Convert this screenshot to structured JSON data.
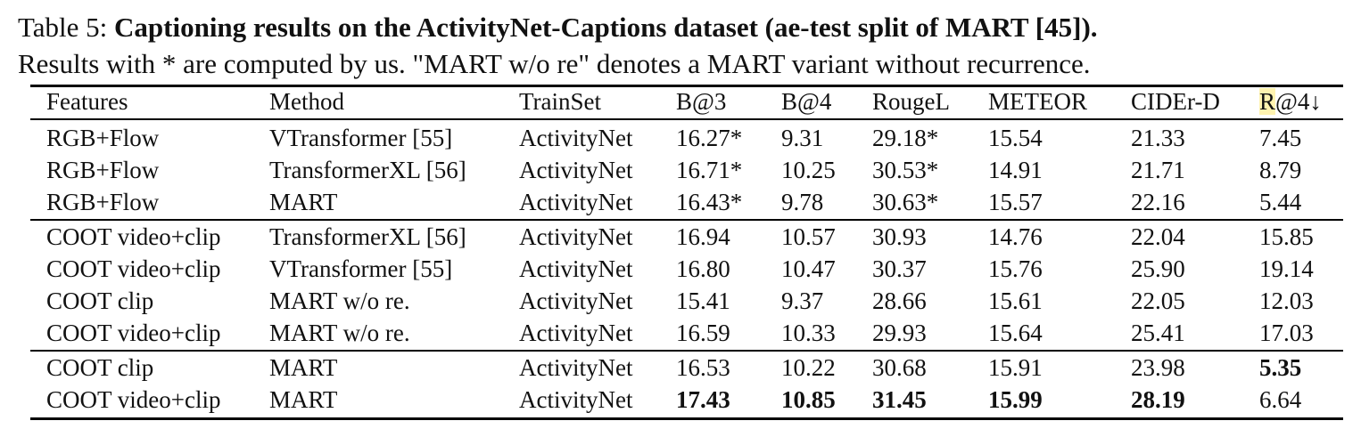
{
  "caption": {
    "label": "Table 5:",
    "title": "Captioning results on the ActivityNet-Captions dataset (ae-test split of MART [45]).",
    "note": "Results with * are computed by us. \"MART w/o re\" denotes a MART variant without recurrence."
  },
  "table": {
    "headers": [
      "Features",
      "Method",
      "TrainSet",
      "B@3",
      "B@4",
      "RougeL",
      "METEOR",
      "CIDEr-D",
      "R@4↓"
    ],
    "header_highlight": "R",
    "header_highlight_rest": "@4↓",
    "highlight_color": "#fff3b0",
    "groups": [
      [
        [
          "RGB+Flow",
          "VTransformer [55]",
          "ActivityNet",
          "16.27*",
          "9.31",
          "29.18*",
          "15.54",
          "21.33",
          "7.45"
        ],
        [
          "RGB+Flow",
          "TransformerXL [56]",
          "ActivityNet",
          "16.71*",
          "10.25",
          "30.53*",
          "14.91",
          "21.71",
          "8.79"
        ],
        [
          "RGB+Flow",
          "MART",
          "ActivityNet",
          "16.43*",
          "9.78",
          "30.63*",
          "15.57",
          "22.16",
          "5.44"
        ]
      ],
      [
        [
          "COOT video+clip",
          "TransformerXL [56]",
          "ActivityNet",
          "16.94",
          "10.57",
          "30.93",
          "14.76",
          "22.04",
          "15.85"
        ],
        [
          "COOT video+clip",
          "VTransformer [55]",
          "ActivityNet",
          "16.80",
          "10.47",
          "30.37",
          "15.76",
          "25.90",
          "19.14"
        ],
        [
          "COOT clip",
          "MART w/o re.",
          "ActivityNet",
          "15.41",
          "9.37",
          "28.66",
          "15.61",
          "22.05",
          "12.03"
        ],
        [
          "COOT video+clip",
          "MART w/o re.",
          "ActivityNet",
          "16.59",
          "10.33",
          "29.93",
          "15.64",
          "25.41",
          "17.03"
        ]
      ],
      [
        [
          "COOT clip",
          "MART",
          "ActivityNet",
          "16.53",
          "10.22",
          "30.68",
          "15.91",
          "23.98",
          "5.35"
        ],
        [
          "COOT video+clip",
          "MART",
          "ActivityNet",
          "17.43",
          "10.85",
          "31.45",
          "15.99",
          "28.19",
          "6.64"
        ]
      ]
    ],
    "bold_cells": [
      [
        2,
        0,
        8
      ],
      [
        2,
        1,
        3
      ],
      [
        2,
        1,
        4
      ],
      [
        2,
        1,
        5
      ],
      [
        2,
        1,
        6
      ],
      [
        2,
        1,
        7
      ]
    ]
  }
}
